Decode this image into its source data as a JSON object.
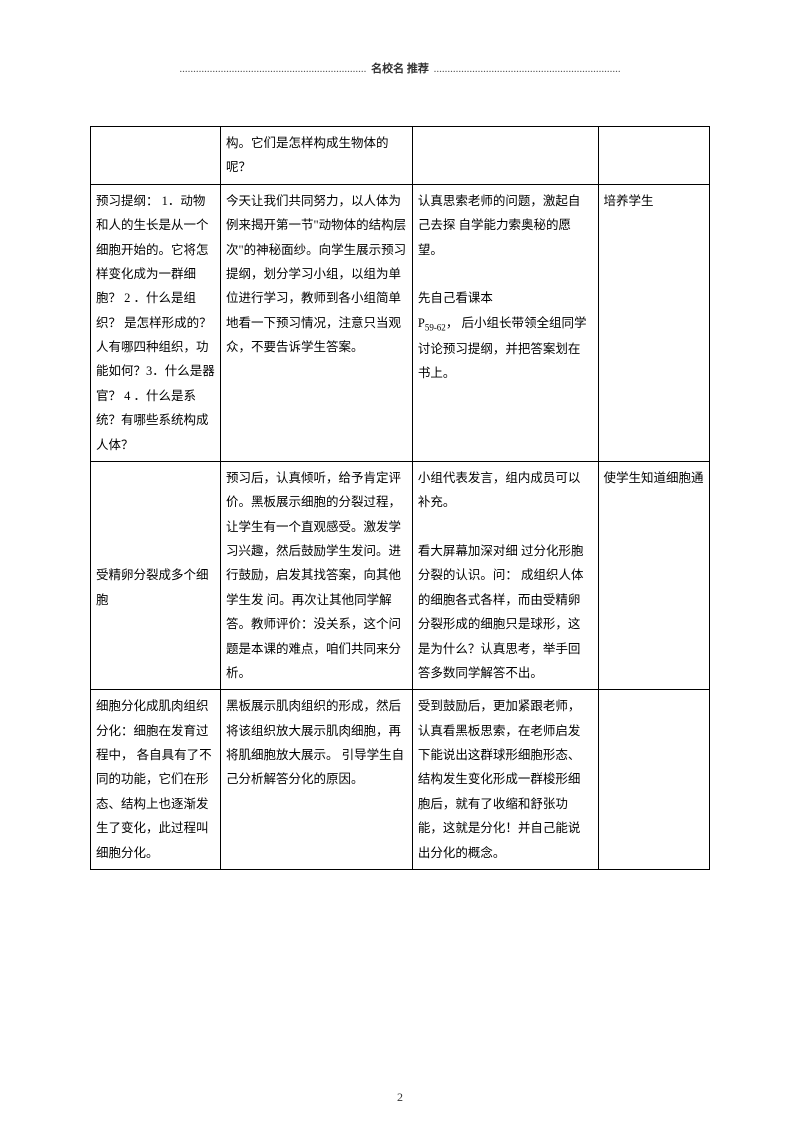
{
  "header": {
    "dots_left": "....................................................................",
    "title": "名校名 推荐",
    "dots_right": "...................................................................."
  },
  "table": {
    "rows": [
      {
        "c1": "",
        "c2": "构。它们是怎样构成生物体的呢？",
        "c3": "",
        "c4": ""
      },
      {
        "c1": "预习提纲： 1．动物和人的生长是从一个细胞开始的。它将怎样变化成为一群细胞？ 2 ．什么是组织？ 是怎样形成的？人有哪四种组织，功能如何？3．什么是器官？ 4 ．什么是系统？有哪些系统构成人体？",
        "c2": "今天让我们共同努力，以人体为例来揭开第一节\"动物体的结构层次\"的神秘面纱。向学生展示预习提纲，划分学习小组，以组为单位进行学习，教师到各小组简单地看一下预习情况，注意只当观众，不要告诉学生答案。",
        "c3": "认真思索老师的问题，激起自己去探 自学能力索奥秘的愿望。\n\n先自己看课本\nP59-62， 后小组长带领全组同学讨论预习提纲，并把答案划在书上。",
        "c4": "培养学生"
      },
      {
        "c1": "受精卵分裂成多个细胞",
        "c2": "预习后，认真倾听，给予肯定评价。黑板展示细胞的分裂过程，让学生有一个直观感受。激发学习兴趣，然后鼓励学生发问。进行鼓励，启发其找答案，向其他学生发 问。再次让其他同学解答。教师评价：没关系，这个问题是本课的难点，咱们共同来分析。",
        "c3": "小组代表发言，组内成员可以补充。\n\n看大屏幕加深对细 过分化形胞分裂的认识。问： 成组织人体的细胞各式各样，而由受精卵分裂形成的细胞只是球形，这是为什么？认真思考，举手回答多数同学解答不出。",
        "c4": "使学生知道细胞通"
      },
      {
        "c1": "细胞分化成肌肉组织\n分化：细胞在发育过程中， 各自具有了不同的功能，它们在形态、结构上也逐渐发生了变化，此过程叫细胞分化。",
        "c2": "黑板展示肌肉组织的形成，然后将该组织放大展示肌肉细胞，再将肌细胞放大展示。 引导学生自己分析解答分化的原因。",
        "c3": "受到鼓励后，更加紧跟老师，认真看黑板思索，在老师启发下能说出这群球形细胞形态、结构发生变化形成一群梭形细胞后，就有了收缩和舒张功能，这就是分化！并自己能说出分化的概念。",
        "c4": ""
      }
    ]
  },
  "page_number": "2"
}
